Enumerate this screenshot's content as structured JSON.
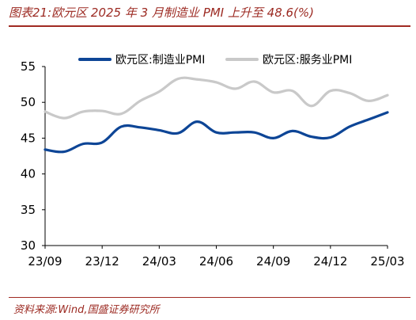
{
  "header": {
    "title": "图表21:欧元区 2025 年 3 月制造业 PMI 上升至 48.6(%)"
  },
  "footer": {
    "source": "资料来源:Wind,国盛证券研究所"
  },
  "colors": {
    "manufacturing": "#0d4596",
    "services": "#c9c9c9",
    "accent": "#9c2a22"
  },
  "chart_data": {
    "type": "line",
    "ylim": [
      30,
      55
    ],
    "y_ticks": [
      30,
      35,
      40,
      45,
      50,
      55
    ],
    "x_start": "2023-09",
    "x_end": "2025-03",
    "x_ticks": [
      "23/09",
      "23/12",
      "24/03",
      "24/06",
      "24/09",
      "24/12",
      "25/03"
    ],
    "grid": false,
    "legend_position": "top",
    "categories": [
      "2023-09",
      "2023-10",
      "2023-11",
      "2023-12",
      "2024-01",
      "2024-02",
      "2024-03",
      "2024-04",
      "2024-05",
      "2024-06",
      "2024-07",
      "2024-08",
      "2024-09",
      "2024-10",
      "2024-11",
      "2024-12",
      "2025-01",
      "2025-02",
      "2025-03"
    ],
    "series": [
      {
        "name": "欧元区:制造业PMI",
        "values": [
          43.4,
          43.1,
          44.2,
          44.4,
          46.6,
          46.5,
          46.1,
          45.7,
          47.3,
          45.8,
          45.8,
          45.8,
          45.0,
          46.0,
          45.2,
          45.1,
          46.6,
          47.6,
          48.6
        ]
      },
      {
        "name": "欧元区:服务业PMI",
        "values": [
          48.7,
          47.8,
          48.7,
          48.8,
          48.4,
          50.2,
          51.5,
          53.3,
          53.2,
          52.8,
          51.9,
          52.9,
          51.4,
          51.6,
          49.5,
          51.6,
          51.3,
          50.2,
          51.0
        ]
      }
    ]
  }
}
